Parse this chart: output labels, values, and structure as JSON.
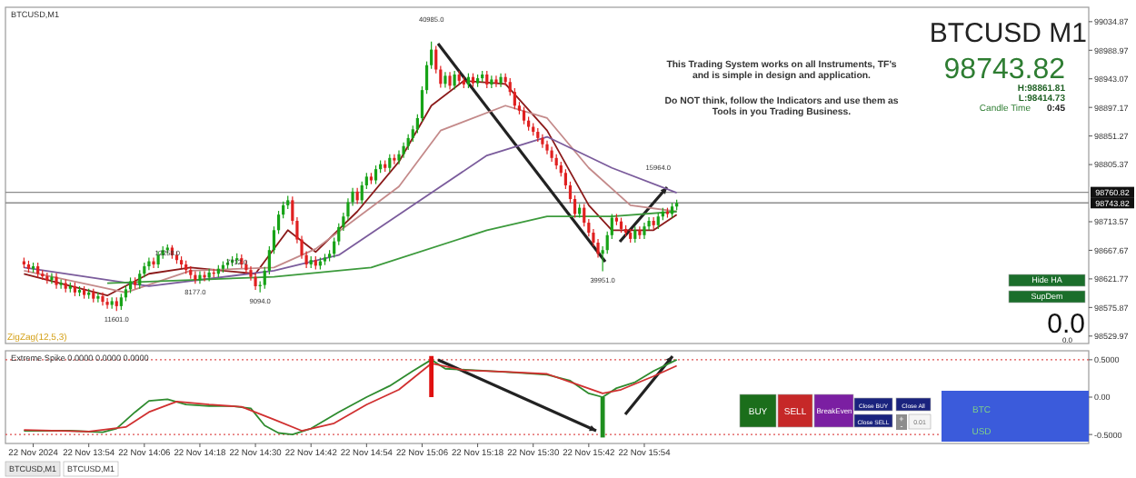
{
  "chart_data": [
    {
      "type": "candlestick",
      "title": "BTCUSD,M1",
      "x": [
        "2024-11-22T13:40",
        "2024-11-22T13:41",
        "2024-11-22T13:42",
        "2024-11-22T13:43",
        "2024-11-22T13:44",
        "2024-11-22T13:45",
        "2024-11-22T13:46",
        "2024-11-22T13:47",
        "2024-11-22T13:48",
        "2024-11-22T13:49",
        "2024-11-22T13:50",
        "2024-11-22T13:51",
        "2024-11-22T13:52",
        "2024-11-22T13:53",
        "2024-11-22T13:54",
        "2024-11-22T13:55",
        "2024-11-22T13:56",
        "2024-11-22T13:57",
        "2024-11-22T13:58",
        "2024-11-22T13:59",
        "2024-11-22T14:00",
        "2024-11-22T14:01",
        "2024-11-22T14:02",
        "2024-11-22T14:03",
        "2024-11-22T14:04",
        "2024-11-22T14:05",
        "2024-11-22T14:06",
        "2024-11-22T14:07",
        "2024-11-22T14:08",
        "2024-11-22T14:09",
        "2024-11-22T14:10",
        "2024-11-22T14:11",
        "2024-11-22T14:12",
        "2024-11-22T14:13",
        "2024-11-22T14:14",
        "2024-11-22T14:15",
        "2024-11-22T14:16",
        "2024-11-22T14:17",
        "2024-11-22T14:18",
        "2024-11-22T14:19",
        "2024-11-22T14:20",
        "2024-11-22T14:21",
        "2024-11-22T14:22",
        "2024-11-22T14:23",
        "2024-11-22T14:24",
        "2024-11-22T14:25",
        "2024-11-22T14:26",
        "2024-11-22T14:27",
        "2024-11-22T14:28",
        "2024-11-22T14:29",
        "2024-11-22T14:30",
        "2024-11-22T14:31",
        "2024-11-22T14:32",
        "2024-11-22T14:33",
        "2024-11-22T14:34",
        "2024-11-22T14:35",
        "2024-11-22T14:36",
        "2024-11-22T14:37",
        "2024-11-22T14:38",
        "2024-11-22T14:39",
        "2024-11-22T14:40",
        "2024-11-22T14:41",
        "2024-11-22T14:42",
        "2024-11-22T14:43",
        "2024-11-22T14:44",
        "2024-11-22T14:45",
        "2024-11-22T14:46",
        "2024-11-22T14:47",
        "2024-11-22T14:48",
        "2024-11-22T14:49",
        "2024-11-22T14:50",
        "2024-11-22T14:51",
        "2024-11-22T14:52",
        "2024-11-22T14:53",
        "2024-11-22T14:54",
        "2024-11-22T14:55",
        "2024-11-22T14:56",
        "2024-11-22T14:57",
        "2024-11-22T14:58",
        "2024-11-22T14:59",
        "2024-11-22T15:00",
        "2024-11-22T15:01",
        "2024-11-22T15:02",
        "2024-11-22T15:03",
        "2024-11-22T15:04",
        "2024-11-22T15:05",
        "2024-11-22T15:06",
        "2024-11-22T15:07",
        "2024-11-22T15:08",
        "2024-11-22T15:09",
        "2024-11-22T15:10",
        "2024-11-22T15:11",
        "2024-11-22T15:12",
        "2024-11-22T15:13",
        "2024-11-22T15:14",
        "2024-11-22T15:15",
        "2024-11-22T15:16",
        "2024-11-22T15:17",
        "2024-11-22T15:18",
        "2024-11-22T15:19",
        "2024-11-22T15:20",
        "2024-11-22T15:21",
        "2024-11-22T15:22",
        "2024-11-22T15:23",
        "2024-11-22T15:24",
        "2024-11-22T15:25",
        "2024-11-22T15:26",
        "2024-11-22T15:27",
        "2024-11-22T15:28",
        "2024-11-22T15:29",
        "2024-11-22T15:30",
        "2024-11-22T15:31",
        "2024-11-22T15:32",
        "2024-11-22T15:33",
        "2024-11-22T15:34",
        "2024-11-22T15:35",
        "2024-11-22T15:36",
        "2024-11-22T15:37",
        "2024-11-22T15:38",
        "2024-11-22T15:39",
        "2024-11-22T15:40",
        "2024-11-22T15:41",
        "2024-11-22T15:42",
        "2024-11-22T15:43",
        "2024-11-22T15:44",
        "2024-11-22T15:45",
        "2024-11-22T15:46",
        "2024-11-22T15:47",
        "2024-11-22T15:48",
        "2024-11-22T15:49",
        "2024-11-22T15:50",
        "2024-11-22T15:51",
        "2024-11-22T15:52",
        "2024-11-22T15:53",
        "2024-11-22T15:54",
        "2024-11-22T15:55",
        "2024-11-22T15:56",
        "2024-11-22T15:57",
        "2024-11-22T15:58",
        "2024-11-22T15:59",
        "2024-11-22T16:00",
        "2024-11-22T16:01"
      ],
      "ohlc": [
        [
          98650,
          98656,
          98639,
          98645
        ],
        [
          98645,
          98651,
          98632,
          98638
        ],
        [
          98638,
          98648,
          98632,
          98642
        ],
        [
          98642,
          98648,
          98624,
          98630
        ],
        [
          98630,
          98636,
          98620,
          98626
        ],
        [
          98626,
          98632,
          98614,
          98620
        ],
        [
          98620,
          98631,
          98614,
          98625
        ],
        [
          98625,
          98631,
          98606,
          98612
        ],
        [
          98612,
          98621,
          98606,
          98615
        ],
        [
          98615,
          98621,
          98600,
          98606
        ],
        [
          98606,
          98616,
          98600,
          98610
        ],
        [
          98610,
          98616,
          98594,
          98600
        ],
        [
          98600,
          98610,
          98594,
          98604
        ],
        [
          98604,
          98610,
          98590,
          98596
        ],
        [
          98596,
          98606,
          98590,
          98600
        ],
        [
          98600,
          98606,
          98584,
          98590
        ],
        [
          98590,
          98600,
          98584,
          98594
        ],
        [
          98594,
          98600,
          98579,
          98585
        ],
        [
          98585,
          98591,
          98574,
          98580
        ],
        [
          98580,
          98592,
          98574,
          98586
        ],
        [
          98586,
          98592,
          98570,
          98578
        ],
        [
          98578,
          98598,
          98572,
          98592
        ],
        [
          98592,
          98611,
          98586,
          98605
        ],
        [
          98605,
          98624,
          98599,
          98618
        ],
        [
          98618,
          98624,
          98606,
          98612
        ],
        [
          98612,
          98636,
          98606,
          98630
        ],
        [
          98630,
          98648,
          98624,
          98642
        ],
        [
          98642,
          98656,
          98636,
          98650
        ],
        [
          98650,
          98656,
          98639,
          98645
        ],
        [
          98645,
          98666,
          98639,
          98660
        ],
        [
          98660,
          98674,
          98654,
          98668
        ],
        [
          98668,
          98677,
          98662,
          98672
        ],
        [
          98672,
          98676,
          98654,
          98660
        ],
        [
          98660,
          98666,
          98646,
          98652
        ],
        [
          98652,
          98658,
          98639,
          98645
        ],
        [
          98645,
          98651,
          98630,
          98636
        ],
        [
          98636,
          98642,
          98622,
          98628
        ],
        [
          98628,
          98634,
          98614,
          98620
        ],
        [
          98620,
          98634,
          98614,
          98628
        ],
        [
          98628,
          98634,
          98618,
          98624
        ],
        [
          98624,
          98638,
          98618,
          98632
        ],
        [
          98632,
          98638,
          98624,
          98630
        ],
        [
          98630,
          98644,
          98624,
          98638
        ],
        [
          98638,
          98650,
          98632,
          98644
        ],
        [
          98644,
          98654,
          98638,
          98648
        ],
        [
          98648,
          98658,
          98642,
          98652
        ],
        [
          98652,
          98663,
          98646,
          98655
        ],
        [
          98655,
          98661,
          98639,
          98645
        ],
        [
          98645,
          98651,
          98630,
          98636
        ],
        [
          98636,
          98642,
          98619,
          98625
        ],
        [
          98625,
          98631,
          98604,
          98610
        ],
        [
          98610,
          98618,
          98600,
          98612
        ],
        [
          98612,
          98641,
          98606,
          98635
        ],
        [
          98635,
          98674,
          98629,
          98668
        ],
        [
          98668,
          98706,
          98662,
          98700
        ],
        [
          98700,
          98731,
          98694,
          98725
        ],
        [
          98725,
          98746,
          98719,
          98740
        ],
        [
          98740,
          98755,
          98734,
          98748
        ],
        [
          98748,
          98754,
          98709,
          98715
        ],
        [
          98715,
          98721,
          98679,
          98685
        ],
        [
          98685,
          98691,
          98654,
          98660
        ],
        [
          98660,
          98666,
          98639,
          98645
        ],
        [
          98645,
          98658,
          98639,
          98652
        ],
        [
          98652,
          98658,
          98637,
          98643
        ],
        [
          98643,
          98656,
          98637,
          98650
        ],
        [
          98650,
          98662,
          98644,
          98656
        ],
        [
          98656,
          98668,
          98650,
          98662
        ],
        [
          98662,
          98688,
          98656,
          98682
        ],
        [
          98682,
          98711,
          98676,
          98705
        ],
        [
          98705,
          98728,
          98699,
          98722
        ],
        [
          98722,
          98751,
          98716,
          98745
        ],
        [
          98745,
          98768,
          98739,
          98762
        ],
        [
          98762,
          98768,
          98742,
          98748
        ],
        [
          98748,
          98778,
          98742,
          98772
        ],
        [
          98772,
          98792,
          98766,
          98786
        ],
        [
          98786,
          98792,
          98774,
          98780
        ],
        [
          98780,
          98804,
          98774,
          98798
        ],
        [
          98798,
          98812,
          98792,
          98806
        ],
        [
          98806,
          98812,
          98794,
          98800
        ],
        [
          98800,
          98822,
          98794,
          98816
        ],
        [
          98816,
          98822,
          98806,
          98812
        ],
        [
          98812,
          98828,
          98806,
          98822
        ],
        [
          98822,
          98841,
          98816,
          98835
        ],
        [
          98835,
          98854,
          98829,
          98848
        ],
        [
          98848,
          98868,
          98842,
          98862
        ],
        [
          98862,
          98886,
          98856,
          98880
        ],
        [
          98880,
          98931,
          98874,
          98925
        ],
        [
          98925,
          98971,
          98919,
          98965
        ],
        [
          98965,
          99003,
          98959,
          98990
        ],
        [
          98990,
          98996,
          98952,
          98958
        ],
        [
          98958,
          98964,
          98929,
          98935
        ],
        [
          98935,
          98954,
          98929,
          98948
        ],
        [
          98948,
          98954,
          98926,
          98932
        ],
        [
          98932,
          98956,
          98926,
          98950
        ],
        [
          98950,
          98956,
          98934,
          98940
        ],
        [
          98940,
          98946,
          98928,
          98934
        ],
        [
          98934,
          98952,
          98928,
          98946
        ],
        [
          98946,
          98952,
          98930,
          98936
        ],
        [
          98936,
          98950,
          98930,
          98944
        ],
        [
          98944,
          98956,
          98938,
          98950
        ],
        [
          98950,
          98956,
          98928,
          98934
        ],
        [
          98934,
          98948,
          98928,
          98942
        ],
        [
          98942,
          98948,
          98930,
          98936
        ],
        [
          98936,
          98952,
          98930,
          98946
        ],
        [
          98946,
          98952,
          98932,
          98938
        ],
        [
          98938,
          98944,
          98916,
          98922
        ],
        [
          98922,
          98928,
          98894,
          98900
        ],
        [
          98900,
          98906,
          98886,
          98892
        ],
        [
          98892,
          98898,
          98870,
          98876
        ],
        [
          98876,
          98882,
          98860,
          98866
        ],
        [
          98866,
          98872,
          98852,
          98858
        ],
        [
          98858,
          98864,
          98842,
          98848
        ],
        [
          98848,
          98854,
          98832,
          98838
        ],
        [
          98838,
          98844,
          98822,
          98828
        ],
        [
          98828,
          98834,
          98810,
          98816
        ],
        [
          98816,
          98822,
          98798,
          98804
        ],
        [
          98804,
          98810,
          98786,
          98792
        ],
        [
          98792,
          98798,
          98766,
          98772
        ],
        [
          98772,
          98778,
          98744,
          98750
        ],
        [
          98750,
          98756,
          98720,
          98726
        ],
        [
          98726,
          98742,
          98720,
          98736
        ],
        [
          98736,
          98742,
          98706,
          98712
        ],
        [
          98712,
          98718,
          98690,
          98696
        ],
        [
          98696,
          98702,
          98674,
          98680
        ],
        [
          98680,
          98686,
          98656,
          98662
        ],
        [
          98662,
          98674,
          98634,
          98668
        ],
        [
          98668,
          98698,
          98662,
          98692
        ],
        [
          98692,
          98726,
          98686,
          98720
        ],
        [
          98720,
          98726,
          98708,
          98714
        ],
        [
          98714,
          98720,
          98696,
          98702
        ],
        [
          98702,
          98708,
          98690,
          98696
        ],
        [
          98696,
          98702,
          98680,
          98686
        ],
        [
          98686,
          98706,
          98680,
          98700
        ],
        [
          98700,
          98706,
          98686,
          98692
        ],
        [
          98692,
          98712,
          98686,
          98706
        ],
        [
          98706,
          98721,
          98700,
          98715
        ],
        [
          98715,
          98721,
          98702,
          98708
        ],
        [
          98708,
          98728,
          98702,
          98722
        ],
        [
          98722,
          98736,
          98716,
          98730
        ],
        [
          98730,
          98736,
          98720,
          98726
        ],
        [
          98726,
          98744,
          98720,
          98738
        ],
        [
          98738,
          98749,
          98732,
          98743.82
        ]
      ],
      "series": [
        {
          "type": "line",
          "color": "#8b1a1a",
          "x": [
            "2024-11-22T13:40",
            "2024-11-22T13:58",
            "2024-11-22T14:07",
            "2024-11-22T14:16",
            "2024-11-22T14:30",
            "2024-11-22T14:37",
            "2024-11-22T14:43",
            "2024-11-22T14:52",
            "2024-11-22T15:01",
            "2024-11-22T15:08",
            "2024-11-22T15:15",
            "2024-11-22T15:24",
            "2024-11-22T15:33",
            "2024-11-22T15:42",
            "2024-11-22T15:47",
            "2024-11-22T15:56",
            "2024-11-22T16:01"
          ],
          "values": [
            98630,
            98595,
            98630,
            98640,
            98630,
            98700,
            98665,
            98730,
            98810,
            98900,
            98940,
            98935,
            98860,
            98740,
            98700,
            98700,
            98725
          ]
        },
        {
          "type": "line",
          "color": "#c48a8a",
          "x": [
            "2024-11-22T13:40",
            "2024-11-22T14:02",
            "2024-11-22T14:16",
            "2024-11-22T14:34",
            "2024-11-22T14:43",
            "2024-11-22T15:01",
            "2024-11-22T15:10",
            "2024-11-22T15:24",
            "2024-11-22T15:33",
            "2024-11-22T15:42",
            "2024-11-22T15:51",
            "2024-11-22T16:01"
          ],
          "values": [
            98635,
            98600,
            98635,
            98640,
            98670,
            98770,
            98860,
            98900,
            98880,
            98800,
            98740,
            98730
          ]
        },
        {
          "type": "line",
          "color": "#7b5c9c",
          "x": [
            "2024-11-22T13:40",
            "2024-11-22T14:07",
            "2024-11-22T14:34",
            "2024-11-22T14:48",
            "2024-11-22T15:06",
            "2024-11-22T15:20",
            "2024-11-22T15:33",
            "2024-11-22T15:47",
            "2024-11-22T16:01"
          ],
          "values": [
            98640,
            98610,
            98635,
            98660,
            98750,
            98820,
            98850,
            98800,
            98760
          ]
        },
        {
          "type": "line",
          "color": "#3c9a3c",
          "x": [
            "2024-11-22T13:58",
            "2024-11-22T14:34",
            "2024-11-22T14:55",
            "2024-11-22T15:20",
            "2024-11-22T15:33",
            "2024-11-22T15:47",
            "2024-11-22T16:01"
          ],
          "values": [
            98615,
            98625,
            98640,
            98700,
            98722,
            98722,
            98730
          ]
        }
      ],
      "xlim": [
        "2024-11-22T13:36",
        "2024-11-22T17:30"
      ],
      "ylim": [
        98518,
        99058
      ],
      "yticks": [
        98529.97,
        98575.87,
        98621.77,
        98667.67,
        98713.57,
        98805.37,
        98851.27,
        98897.17,
        98943.07,
        98988.97,
        99034.87
      ],
      "tick_labels": "y",
      "ref_lines": [
        {
          "axis": "y",
          "value": 98760.82,
          "label": "98760.82",
          "color": "#8c8c8c"
        },
        {
          "axis": "y",
          "value": 98743.82,
          "label": "98743.82",
          "color": "#8c8c8c"
        }
      ],
      "annotations": [
        "BTCUSD M1",
        "98743.82",
        "H:98861.81",
        "L:98414.73",
        "Candle Time",
        "0:45",
        "This Trading System works on all Instruments, TF's",
        "and is simple in design and application.",
        "Do NOT think, follow the Indicators and use them as",
        "Tools in you Trading Business.",
        "Hide HA",
        "SupDem",
        "0.0",
        "0.0",
        "ZigZag(12,5,3)",
        {
          "text": "11601.0",
          "x": "2024-11-22T14:00",
          "y": 98570
        },
        {
          "text": "12258.0",
          "x": "2024-11-22T14:11",
          "y": 98677
        },
        {
          "text": "8177.0",
          "x": "2024-11-22T14:17",
          "y": 98614
        },
        {
          "text": "7712.0",
          "x": "2024-11-22T14:26",
          "y": 98663
        },
        {
          "text": "9094.0",
          "x": "2024-11-22T14:31",
          "y": 98600
        },
        {
          "text": "40985.0",
          "x": "2024-11-22T15:08",
          "y": 99003
        },
        {
          "text": "39951.0",
          "x": "2024-11-22T15:45",
          "y": 98634
        },
        {
          "text": "15964.0",
          "x": "2024-11-22T15:57",
          "y": 98764
        }
      ]
    },
    {
      "type": "line",
      "title": "Extreme Spike 0.0000 0.0000 0.0000",
      "series": [
        {
          "type": "line",
          "color": "#2e8b2e",
          "x": [
            "2024-11-22T13:40",
            "2024-11-22T13:50",
            "2024-11-22T13:57",
            "2024-11-22T14:00",
            "2024-11-22T14:04",
            "2024-11-22T14:07",
            "2024-11-22T14:11",
            "2024-11-22T14:15",
            "2024-11-22T14:20",
            "2024-11-22T14:25",
            "2024-11-22T14:29",
            "2024-11-22T14:32",
            "2024-11-22T14:35",
            "2024-11-22T14:38",
            "2024-11-22T14:42",
            "2024-11-22T14:48",
            "2024-11-22T14:54",
            "2024-11-22T14:59",
            "2024-11-22T15:04",
            "2024-11-22T15:08",
            "2024-11-22T15:11",
            "2024-11-22T15:20",
            "2024-11-22T15:28",
            "2024-11-22T15:33",
            "2024-11-22T15:38",
            "2024-11-22T15:42",
            "2024-11-22T15:45",
            "2024-11-22T15:48",
            "2024-11-22T15:52",
            "2024-11-22T15:56",
            "2024-11-22T16:01"
          ],
          "values": [
            -0.45,
            -0.45,
            -0.47,
            -0.42,
            -0.2,
            -0.05,
            -0.03,
            -0.1,
            -0.12,
            -0.12,
            -0.15,
            -0.38,
            -0.48,
            -0.5,
            -0.42,
            -0.2,
            0.0,
            0.15,
            0.35,
            0.5,
            0.38,
            0.35,
            0.32,
            0.3,
            0.22,
            0.05,
            0.0,
            0.12,
            0.2,
            0.35,
            0.5
          ]
        },
        {
          "type": "line",
          "color": "#d03030",
          "x": [
            "2024-11-22T13:40",
            "2024-11-22T13:54",
            "2024-11-22T14:02",
            "2024-11-22T14:07",
            "2024-11-22T14:13",
            "2024-11-22T14:20",
            "2024-11-22T14:27",
            "2024-11-22T14:34",
            "2024-11-22T14:40",
            "2024-11-22T14:47",
            "2024-11-22T14:54",
            "2024-11-22T15:01",
            "2024-11-22T15:08",
            "2024-11-22T15:15",
            "2024-11-22T15:24",
            "2024-11-22T15:33",
            "2024-11-22T15:39",
            "2024-11-22T15:45",
            "2024-11-22T15:49",
            "2024-11-22T15:56",
            "2024-11-22T16:01"
          ],
          "values": [
            -0.44,
            -0.46,
            -0.4,
            -0.2,
            -0.06,
            -0.1,
            -0.13,
            -0.3,
            -0.45,
            -0.35,
            -0.1,
            0.1,
            0.45,
            0.36,
            0.34,
            0.31,
            0.18,
            0.05,
            0.1,
            0.28,
            0.42
          ]
        },
        {
          "type": "bar",
          "color": "#e01010",
          "x": [
            "2024-11-22T15:08"
          ],
          "values": [
            0.55
          ]
        },
        {
          "type": "bar",
          "color": "#1f8f1f",
          "x": [
            "2024-11-22T15:45"
          ],
          "values": [
            -0.54
          ]
        }
      ],
      "xlim": [
        "2024-11-22T13:36",
        "2024-11-22T17:30"
      ],
      "ylim": [
        -0.62,
        0.62
      ],
      "xticks": [
        {
          "value": "2024-11-22T13:42",
          "label": "22 Nov 2024"
        },
        {
          "value": "2024-11-22T13:54",
          "label": "22 Nov 13:54"
        },
        {
          "value": "2024-11-22T14:06",
          "label": "22 Nov 14:06"
        },
        {
          "value": "2024-11-22T14:18",
          "label": "22 Nov 14:18"
        },
        {
          "value": "2024-11-22T14:30",
          "label": "22 Nov 14:30"
        },
        {
          "value": "2024-11-22T14:42",
          "label": "22 Nov 14:42"
        },
        {
          "value": "2024-11-22T14:54",
          "label": "22 Nov 14:54"
        },
        {
          "value": "2024-11-22T15:06",
          "label": "22 Nov 15:06"
        },
        {
          "value": "2024-11-22T15:18",
          "label": "22 Nov 15:18"
        },
        {
          "value": "2024-11-22T15:30",
          "label": "22 Nov 15:30"
        },
        {
          "value": "2024-11-22T15:42",
          "label": "22 Nov 15:42"
        },
        {
          "value": "2024-11-22T15:54",
          "label": "22 Nov 15:54"
        }
      ],
      "yticks": [
        {
          "value": 0.5,
          "label": "0.5000"
        },
        {
          "value": 0,
          "label": "0.00"
        },
        {
          "value": -0.5,
          "label": "-0.5000"
        }
      ],
      "ref_lines": [
        {
          "axis": "y",
          "value": 0.5,
          "color": "#e05050",
          "line_style": "dotted"
        },
        {
          "axis": "y",
          "value": -0.5,
          "color": "#e05050",
          "line_style": "dotted"
        }
      ],
      "annotations": [
        "BUY",
        "SELL",
        "BreakEven",
        "Close BUY",
        "Close SELL",
        "Close All",
        "0.01",
        "BTC",
        "USD",
        "BTCUSD,M1",
        "BTCUSD,M1",
        "+",
        "-"
      ]
    }
  ]
}
